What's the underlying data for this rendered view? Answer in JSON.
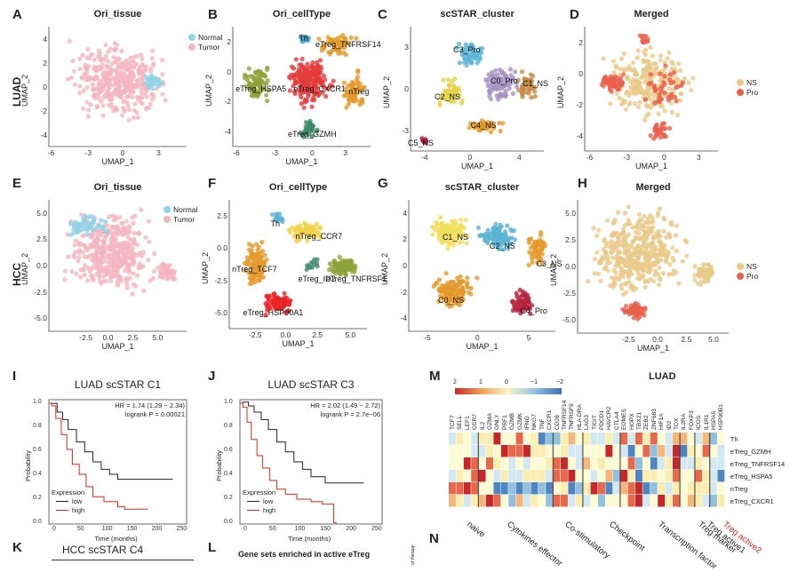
{
  "panel_letters": [
    "A",
    "B",
    "C",
    "D",
    "E",
    "F",
    "G",
    "H",
    "I",
    "J",
    "K",
    "L",
    "M",
    "N"
  ],
  "row_labels": {
    "top": "LUAD",
    "mid": "HCC"
  },
  "umap_panels": [
    {
      "id": "A",
      "title": "Ori_tissue",
      "xlabel": "UMAP_1",
      "ylabel": "UMAP_2",
      "xticks": [
        "-6",
        "-3",
        "0",
        "3"
      ],
      "yticks": [
        "4",
        "2",
        "0",
        "-2",
        "-4"
      ],
      "legend": [
        {
          "label": "Normal",
          "color": "#8fd3e6"
        },
        {
          "label": "Tumor",
          "color": "#f4b6c2"
        }
      ]
    },
    {
      "id": "B",
      "title": "Ori_cellType",
      "xlabel": "UMAP_1",
      "ylabel": "UMAP_2",
      "xticks": [
        "-6",
        "-3",
        "0",
        "3"
      ],
      "yticks": [
        "2",
        "0",
        "-2",
        "-4"
      ],
      "labels": [
        "Th",
        "eTreg_TNFRSF14",
        "eTreg_HSPA5",
        "eTreg_CXCR1",
        "nTreg",
        "eTreg_GZMH"
      ]
    },
    {
      "id": "C",
      "title": "scSTAR_cluster",
      "xlabel": "UMAP_1",
      "ylabel": "UMAP_2",
      "xticks": [
        "-4",
        "0",
        "4"
      ],
      "yticks": [
        "3",
        "0",
        "-3"
      ],
      "labels": [
        "C3_Pro",
        "C0_Pro",
        "C1_NS",
        "C2_NS",
        "C4_NS",
        "C5_NS"
      ]
    },
    {
      "id": "D",
      "title": "Merged",
      "xlabel": "UMAP_1",
      "ylabel": "UMAP_2",
      "xticks": [
        "-6",
        "-3",
        "0",
        "3"
      ],
      "yticks": [
        "2",
        "0",
        "-2",
        "-4"
      ],
      "legend": [
        {
          "label": "NS",
          "color": "#e8c98a"
        },
        {
          "label": "Pro",
          "color": "#e8604e"
        }
      ]
    },
    {
      "id": "E",
      "title": "Ori_tissue",
      "xlabel": "UMAP_1",
      "ylabel": "UMAP_2",
      "xticks": [
        "-2.5",
        "0.0",
        "2.5",
        "5.0"
      ],
      "yticks": [
        "5.0",
        "2.5",
        "0.0",
        "-2.5",
        "-5.0"
      ],
      "legend": [
        {
          "label": "Normal",
          "color": "#8fd3e6"
        },
        {
          "label": "Tumor",
          "color": "#f4b6c2"
        }
      ]
    },
    {
      "id": "F",
      "title": "Ori_cellType",
      "xlabel": "UMAP_1",
      "ylabel": "UMAP_2",
      "xticks": [
        "-2.5",
        "0.0",
        "2.5",
        "5.0"
      ],
      "yticks": [
        "2.5",
        "0.0",
        "-2.5",
        "-5.0"
      ],
      "labels": [
        "Th",
        "nTreg_CCR7",
        "nTreg_TCF7",
        "eTreg_ID2",
        "eTreg_TNFRSF1",
        "eTreg_HSP90A1"
      ]
    },
    {
      "id": "G",
      "title": "scSTAR_cluster",
      "xlabel": "UMAP_1",
      "ylabel": "UMAP_2",
      "xticks": [
        "-5",
        "0",
        "5"
      ],
      "yticks": [
        "4",
        "2",
        "0",
        "-2",
        "-4"
      ],
      "labels": [
        "C1_NS",
        "C2_NS",
        "C3_NS",
        "C0_NS",
        "C4_Pro"
      ]
    },
    {
      "id": "H",
      "title": "Merged",
      "xlabel": "UMAP_1",
      "ylabel": "UMAP_2",
      "xticks": [
        "-2.5",
        "0.0",
        "2.5",
        "5.0"
      ],
      "yticks": [
        "5.0",
        "2.5",
        "0.0",
        "-2.5",
        "-5.0"
      ],
      "legend": [
        {
          "label": "NS",
          "color": "#e8c98a"
        },
        {
          "label": "Pro",
          "color": "#e8604e"
        }
      ]
    }
  ],
  "km_panels": [
    {
      "id": "I",
      "title": "LUAD scSTAR C1",
      "stat1": "HR = 1.74 (1.29 − 2.34)",
      "stat2": "logrank P = 0.00021",
      "xlabel": "Time (months)",
      "ylabel": "Probability",
      "xticks": [
        "0",
        "50",
        "100",
        "150",
        "200",
        "250"
      ],
      "yticks": [
        "0.0",
        "0.2",
        "0.4",
        "0.6",
        "0.8",
        "1.0"
      ],
      "legend_title": "Expression",
      "legend": [
        "low",
        "high"
      ]
    },
    {
      "id": "J",
      "title": "LUAD scSTAR C3",
      "stat1": "HR = 2.02 (1.49 − 2.72)",
      "stat2": "logrank P = 2.7e−06",
      "xlabel": "Time (months)",
      "ylabel": "Probability",
      "xticks": [
        "0",
        "50",
        "100",
        "150",
        "200",
        "250"
      ],
      "yticks": [
        "0.0",
        "0.2",
        "0.4",
        "0.6",
        "0.8",
        "1.0"
      ],
      "legend_title": "Expression",
      "legend": [
        "low",
        "high"
      ]
    }
  ],
  "bottom": {
    "K": "HCC scSTAR C4",
    "L": "Gene sets enriched in active eTreg",
    "N_fragment": "of therapy"
  },
  "heatmap": {
    "title": "LUAD",
    "scale_ticks": [
      "2",
      "1",
      "0",
      "−1",
      "−2"
    ],
    "genes": [
      "TCF7",
      "SELL",
      "LEF1",
      "CCR7",
      "IL2",
      "GZMA",
      "GNLY",
      "PRF1",
      "GZMB",
      "GZMK",
      "IFNG",
      "NKG7",
      "TNF",
      "CXCR1",
      "CD28",
      "TNFRSF14",
      "TNFRSF9",
      "HLA-DRA",
      "LAG3",
      "TIGIT",
      "PDCD1",
      "HAVCR2",
      "CTLA4",
      "EOMES",
      "HOPX",
      "TBX21",
      "ZEB2",
      "ZNF683",
      "HIF1A",
      "ID2",
      "TOX",
      "IL2RA",
      "FOXP3",
      "ICOS",
      "IL1R1",
      "HSPA5",
      "HSP90B1"
    ],
    "rows": [
      "Th",
      "eTreg_GZMH",
      "eTreg_TNFRSF14",
      "eTreg_HSPA5",
      "nTreg",
      "eTreg_CXCR1"
    ],
    "groups": [
      "naive",
      "Cytokines effector",
      "Co-stimulatory",
      "Checkpoint",
      "Transcription factor",
      "Treg marker",
      "Treg active1",
      "Treg active2"
    ],
    "highlight_color": "#d62b1f"
  }
}
